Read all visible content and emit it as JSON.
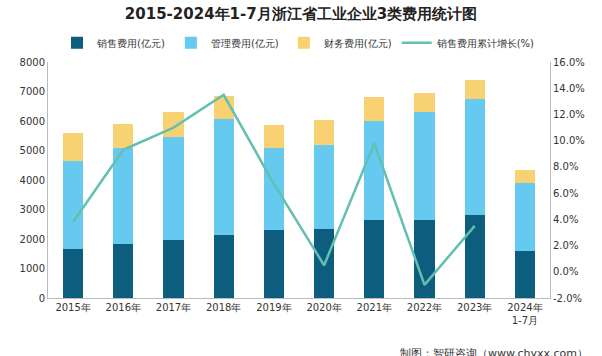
{
  "chart_data": {
    "type": "bar",
    "title": "2015-2024年1-7月浙江省工业企业3类费用统计图",
    "categories": [
      "2015年",
      "2016年",
      "2017年",
      "2018年",
      "2019年",
      "2020年",
      "2021年",
      "2022年",
      "2023年",
      "2024年\n1-7月"
    ],
    "stacked": true,
    "grid": false,
    "legend": "top",
    "series": [
      {
        "name": "销售费用(亿元)",
        "type": "bar",
        "color": "#0d5e7e",
        "values": [
          1650,
          1820,
          1950,
          2150,
          2300,
          2350,
          2650,
          2650,
          2800,
          1580
        ]
      },
      {
        "name": "管理费用(亿元)",
        "type": "bar",
        "color": "#66c9ef",
        "values": [
          3000,
          3260,
          3500,
          3930,
          2780,
          2830,
          3350,
          3650,
          3950,
          2320
        ]
      },
      {
        "name": "财务费用(亿元)",
        "type": "bar",
        "color": "#f8d272",
        "values": [
          950,
          820,
          850,
          770,
          770,
          870,
          800,
          650,
          650,
          450
        ]
      },
      {
        "name": "销售费用累计增长(%)",
        "type": "line",
        "axis": "y2",
        "color": "#62bfb2",
        "values": [
          3.8,
          9.3,
          11.0,
          13.5,
          6.7,
          0.5,
          9.8,
          -1.0,
          3.5,
          null
        ]
      }
    ],
    "ylim": [
      0,
      8000
    ],
    "yticks": [
      0,
      1000,
      2000,
      3000,
      4000,
      5000,
      6000,
      7000,
      8000
    ],
    "y2lim": [
      -2,
      16
    ],
    "y2ticks": [
      {
        "value": -2,
        "label": "-2.0%"
      },
      {
        "value": 0,
        "label": "0.0%"
      },
      {
        "value": 2,
        "label": "2.0%"
      },
      {
        "value": 4,
        "label": "4.0%"
      },
      {
        "value": 6,
        "label": "6.0%"
      },
      {
        "value": 8,
        "label": "8.0%"
      },
      {
        "value": 10,
        "label": "10.0%"
      },
      {
        "value": 12,
        "label": "12.0%"
      },
      {
        "value": 14,
        "label": "14.0%"
      },
      {
        "value": 16,
        "label": "16.0%"
      }
    ],
    "annotations": [
      "制图：智研咨询（www.chyxx.com）"
    ]
  }
}
